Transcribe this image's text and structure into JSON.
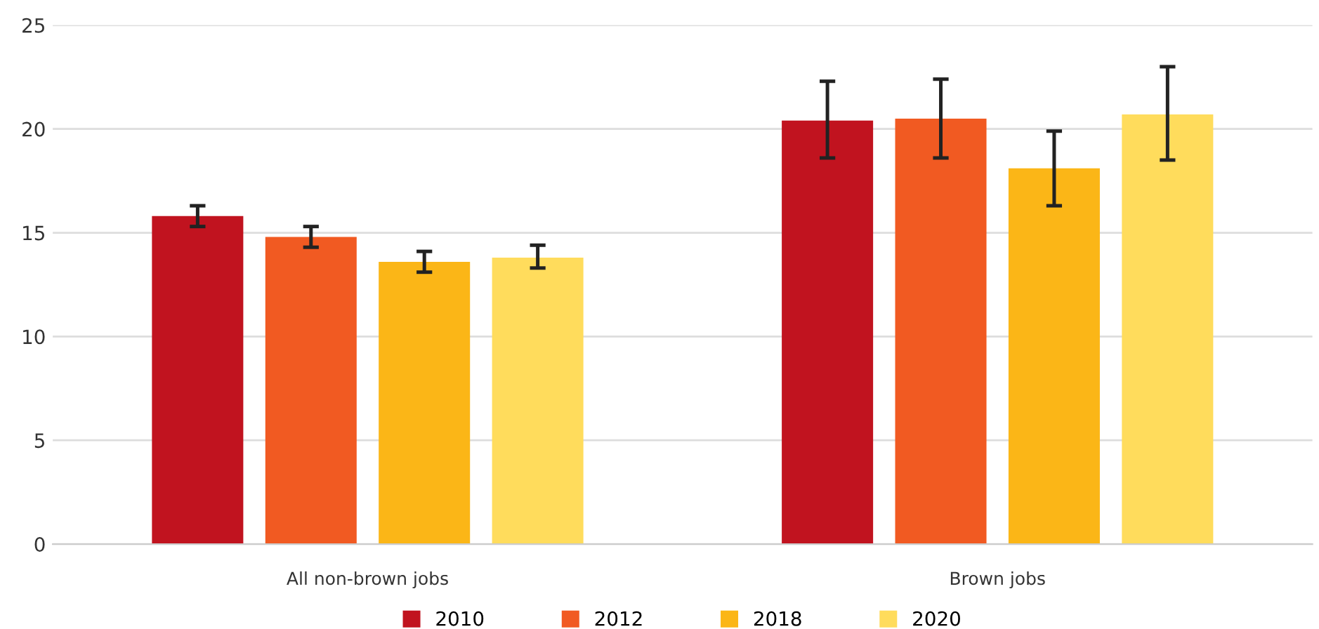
{
  "chart_data": {
    "type": "bar",
    "categories": [
      "All non-brown jobs",
      "Brown jobs"
    ],
    "series": [
      {
        "name": "2010",
        "color": "#c1131f",
        "values": [
          15.8,
          20.4
        ],
        "errors": [
          [
            15.3,
            16.3
          ],
          [
            18.6,
            22.3
          ]
        ]
      },
      {
        "name": "2012",
        "color": "#f15a22",
        "values": [
          14.8,
          20.5
        ],
        "errors": [
          [
            14.3,
            15.3
          ],
          [
            18.6,
            22.4
          ]
        ]
      },
      {
        "name": "2018",
        "color": "#fbb617",
        "values": [
          13.6,
          18.1
        ],
        "errors": [
          [
            13.1,
            14.1
          ],
          [
            16.3,
            19.9
          ]
        ]
      },
      {
        "name": "2020",
        "color": "#ffdc5c",
        "values": [
          13.8,
          20.7
        ],
        "errors": [
          [
            13.3,
            14.4
          ],
          [
            18.5,
            23.0
          ]
        ]
      }
    ],
    "ylim": [
      0,
      25
    ],
    "yticks": [
      0,
      5,
      10,
      15,
      20,
      25
    ],
    "grid": "y",
    "legend": "bottom"
  }
}
